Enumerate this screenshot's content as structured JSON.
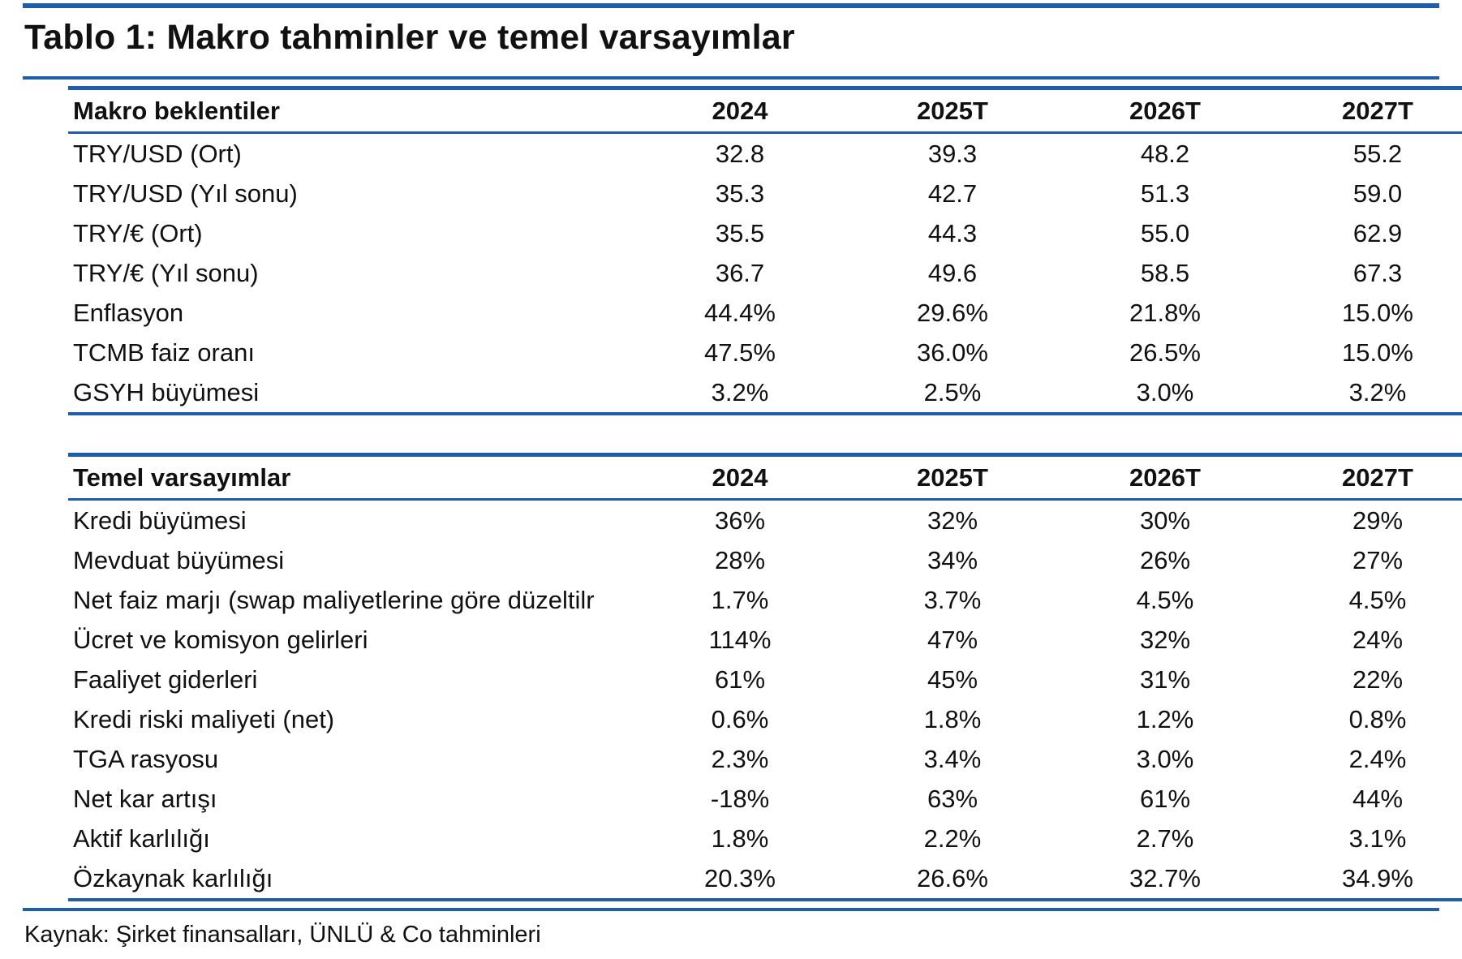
{
  "colors": {
    "accent": "#1f5ea8",
    "text": "#111111",
    "background": "#ffffff"
  },
  "title": "Tablo 1: Makro tahminler ve temel varsayımlar",
  "macro_table": {
    "header": {
      "label": "Makro beklentiler",
      "years": [
        "2024",
        "2025T",
        "2026T",
        "2027T"
      ]
    },
    "rows": [
      {
        "label": "TRY/USD (Ort)",
        "values": [
          "32.8",
          "39.3",
          "48.2",
          "55.2"
        ]
      },
      {
        "label": "TRY/USD (Yıl sonu)",
        "values": [
          "35.3",
          "42.7",
          "51.3",
          "59.0"
        ]
      },
      {
        "label": "TRY/€ (Ort)",
        "values": [
          "35.5",
          "44.3",
          "55.0",
          "62.9"
        ]
      },
      {
        "label": "TRY/€ (Yıl sonu)",
        "values": [
          "36.7",
          "49.6",
          "58.5",
          "67.3"
        ]
      },
      {
        "label": "Enflasyon",
        "values": [
          "44.4%",
          "29.6%",
          "21.8%",
          "15.0%"
        ]
      },
      {
        "label": "TCMB faiz oranı",
        "values": [
          "47.5%",
          "36.0%",
          "26.5%",
          "15.0%"
        ]
      },
      {
        "label": "GSYH büyümesi",
        "values": [
          "3.2%",
          "2.5%",
          "3.0%",
          "3.2%"
        ]
      }
    ]
  },
  "assumptions_table": {
    "header": {
      "label": "Temel varsayımlar",
      "years": [
        "2024",
        "2025T",
        "2026T",
        "2027T"
      ]
    },
    "rows": [
      {
        "label": "Kredi büyümesi",
        "values": [
          "36%",
          "32%",
          "30%",
          "29%"
        ]
      },
      {
        "label": "Mevduat büyümesi",
        "values": [
          "28%",
          "34%",
          "26%",
          "27%"
        ]
      },
      {
        "label": "Net faiz marjı (swap maliyetlerine göre düzeltilr",
        "values": [
          "1.7%",
          "3.7%",
          "4.5%",
          "4.5%"
        ]
      },
      {
        "label": "Ücret ve komisyon gelirleri",
        "values": [
          "114%",
          "47%",
          "32%",
          "24%"
        ]
      },
      {
        "label": "Faaliyet giderleri",
        "values": [
          "61%",
          "45%",
          "31%",
          "22%"
        ]
      },
      {
        "label": "Kredi riski maliyeti (net)",
        "values": [
          "0.6%",
          "1.8%",
          "1.2%",
          "0.8%"
        ]
      },
      {
        "label": "TGA rasyosu",
        "values": [
          "2.3%",
          "3.4%",
          "3.0%",
          "2.4%"
        ]
      },
      {
        "label": "Net kar artışı",
        "values": [
          "-18%",
          "63%",
          "61%",
          "44%"
        ]
      },
      {
        "label": "Aktif karlılığı",
        "values": [
          "1.8%",
          "2.2%",
          "2.7%",
          "3.1%"
        ]
      },
      {
        "label": "Özkaynak karlılığı",
        "values": [
          "20.3%",
          "26.6%",
          "32.7%",
          "34.9%"
        ]
      }
    ]
  },
  "source": "Kaynak: Şirket finansalları, ÜNLÜ & Co tahminleri"
}
